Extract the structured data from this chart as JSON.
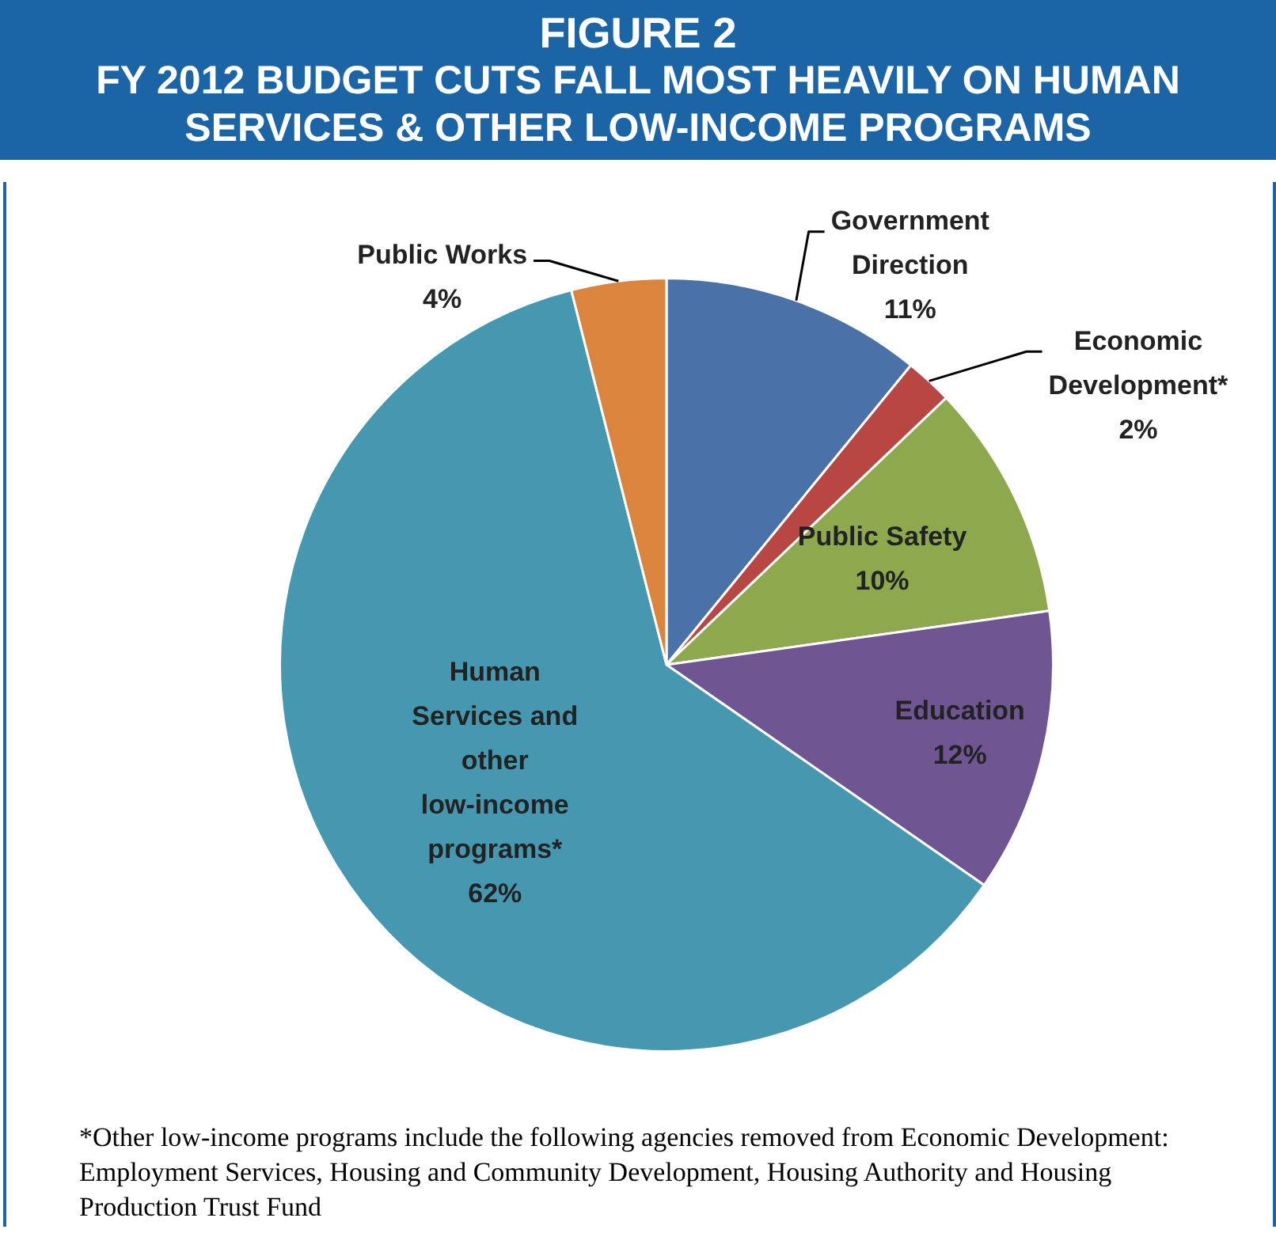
{
  "chart_data": {
    "type": "pie",
    "title": "FIGURE 2",
    "subtitle": "FY 2012 BUDGET CUTS FALL MOST HEAVILY ON HUMAN SERVICES & OTHER LOW-INCOME PROGRAMS",
    "categories": [
      "Government Direction",
      "Economic Development*",
      "Public Safety",
      "Education",
      "Human Services and other low-income programs*",
      "Public Works"
    ],
    "values": [
      11,
      2,
      10,
      12,
      62,
      4
    ],
    "colors": [
      "#4a72a8",
      "#b84643",
      "#8ea84e",
      "#6f5693",
      "#4598b0",
      "#db843d"
    ],
    "value_labels": [
      "11%",
      "2%",
      "10%",
      "12%",
      "62%",
      "4%"
    ],
    "legend": false,
    "annotations": [
      "*Other low-income programs include the following agencies removed from Economic Development: Employment Services, Housing and Community Development, Housing Authority and Housing Production Trust Fund"
    ]
  }
}
